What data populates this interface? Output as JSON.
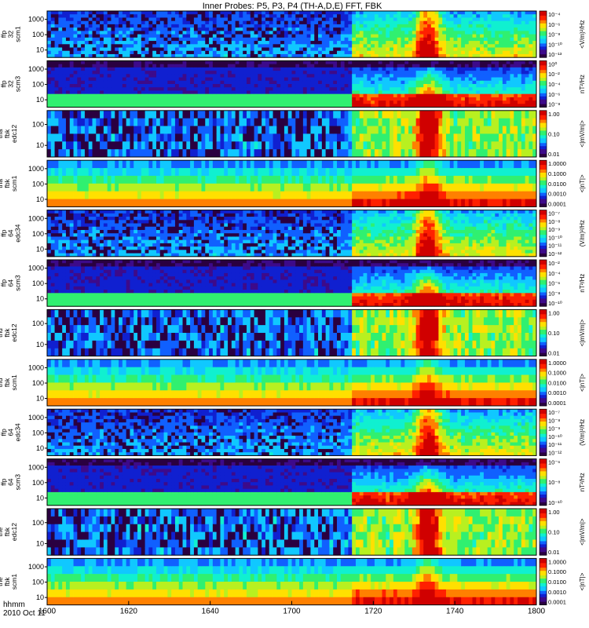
{
  "title": "Inner Probes: P5, P3, P4 (TH-A,D,E) FFT, FBK",
  "footer": {
    "time_label": "hhmm",
    "date_label": "2010 Oct 11"
  },
  "colors": {
    "spectrum": [
      "#2a0040",
      "#3d0a8a",
      "#1020d0",
      "#1060ff",
      "#10c8ff",
      "#10f0d0",
      "#30f070",
      "#b8f020",
      "#ffe000",
      "#ff8000",
      "#ff2000",
      "#d00000"
    ]
  },
  "chart_data": {
    "type": "heatmap",
    "x_axis": {
      "ticks": [
        "1600",
        "1620",
        "1640",
        "1700",
        "1720",
        "1740",
        "1800"
      ],
      "range": [
        "16:00",
        "18:00"
      ]
    },
    "panels": [
      {
        "ylabel": [
          "tha",
          "ffp",
          "32",
          "scm1"
        ],
        "yticks": [
          "1000",
          "100",
          "10"
        ],
        "cticks": [
          "10⁻⁴",
          "10⁻⁶",
          "10⁻⁸",
          "10⁻¹⁰",
          "10⁻¹³"
        ],
        "cunit": "<V/m)²/Hz",
        "style": "fft_e"
      },
      {
        "ylabel": [
          "tha",
          "ffp",
          "32",
          "scm3"
        ],
        "yticks": [
          "1000",
          "100",
          "10"
        ],
        "cticks": [
          "10⁰",
          "10⁻²",
          "10⁻⁴",
          "10⁻⁶",
          "10⁻⁸"
        ],
        "cunit": "nT²/Hz",
        "style": "fft_b"
      },
      {
        "ylabel": [
          "tha",
          "fbk",
          "edc12"
        ],
        "yticks": [
          "100",
          "10"
        ],
        "cticks": [
          "1.00",
          "0.10",
          "0.01"
        ],
        "cunit": "<|mV/m|>",
        "style": "fbk_e"
      },
      {
        "ylabel": [
          "tha",
          "fbk",
          "scm1"
        ],
        "yticks": [
          "1000",
          "100",
          "10"
        ],
        "cticks": [
          "1.0000",
          "0.1000",
          "0.0100",
          "0.0010",
          "0.0001"
        ],
        "cunit": "<|nT|>",
        "style": "fbk_b"
      },
      {
        "ylabel": [
          "thd",
          "ffp",
          "64",
          "edc34"
        ],
        "yticks": [
          "1000",
          "100",
          "10"
        ],
        "cticks": [
          "10⁻⁷",
          "10⁻⁸",
          "10⁻⁹",
          "10⁻¹⁰",
          "10⁻¹¹",
          "10⁻¹²"
        ],
        "cunit": "(V/m)²/Hz",
        "style": "fft_e"
      },
      {
        "ylabel": [
          "thd",
          "ffp",
          "64",
          "scm3"
        ],
        "yticks": [
          "1000",
          "100",
          "10"
        ],
        "cticks": [
          "10⁻²",
          "10⁻⁴",
          "10⁻⁶",
          "10⁻⁸",
          "10⁻¹⁰"
        ],
        "cunit": "nT²/Hz",
        "style": "fft_b"
      },
      {
        "ylabel": [
          "thd",
          "fbk",
          "edc12"
        ],
        "yticks": [
          "100",
          "10"
        ],
        "cticks": [
          "1.00",
          "0.10",
          "0.01"
        ],
        "cunit": "<|mV/m|>",
        "style": "fbk_e"
      },
      {
        "ylabel": [
          "thd",
          "fbk",
          "scm1"
        ],
        "yticks": [
          "1000",
          "100",
          "10"
        ],
        "cticks": [
          "1.0000",
          "0.1000",
          "0.0100",
          "0.0010",
          "0.0001"
        ],
        "cunit": "<|nT|>",
        "style": "fbk_b"
      },
      {
        "ylabel": [
          "the",
          "ffp",
          "64",
          "edc34"
        ],
        "yticks": [
          "1000",
          "100",
          "10"
        ],
        "cticks": [
          "10⁻⁷",
          "10⁻⁸",
          "10⁻⁹",
          "10⁻¹⁰",
          "10⁻¹¹",
          "10⁻¹²"
        ],
        "cunit": "(V/m)²/Hz",
        "style": "fft_e"
      },
      {
        "ylabel": [
          "the",
          "ffp",
          "64",
          "scm3"
        ],
        "yticks": [
          "1000",
          "100",
          "10"
        ],
        "cticks": [
          "10⁻⁶",
          "10⁻⁸",
          "10⁻¹⁰"
        ],
        "cunit": "nT²/Hz",
        "style": "fft_b"
      },
      {
        "ylabel": [
          "the",
          "fbk",
          "edc12"
        ],
        "yticks": [
          "100",
          "10"
        ],
        "cticks": [
          "1.00",
          "0.10",
          "0.01"
        ],
        "cunit": "<|mV/m|>",
        "style": "fbk_e"
      },
      {
        "ylabel": [
          "the",
          "fbk",
          "scm1"
        ],
        "yticks": [
          "1000",
          "100",
          "10"
        ],
        "cticks": [
          "1.0000",
          "0.1000",
          "0.0100",
          "0.0010",
          "0.0001"
        ],
        "cunit": "<|nT|>",
        "style": "fbk_b"
      }
    ]
  }
}
